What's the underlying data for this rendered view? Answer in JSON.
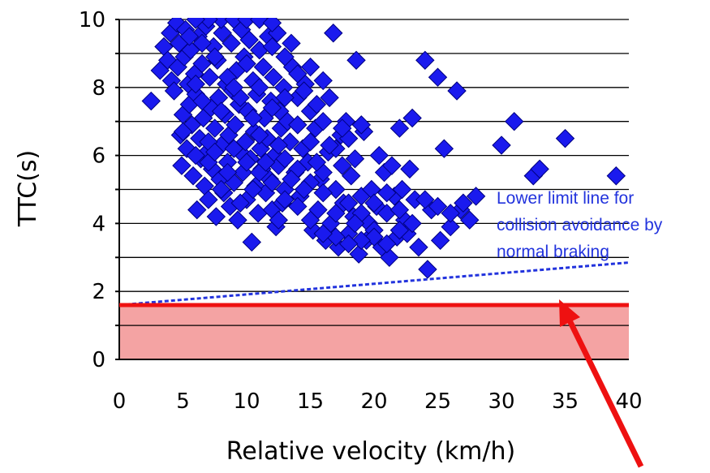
{
  "chart_data": {
    "type": "scatter",
    "title": "",
    "xlabel": "Relative velocity (km/h)",
    "ylabel": "TTC(s)",
    "xlim": [
      0,
      40
    ],
    "ylim": [
      0,
      10
    ],
    "x_ticks": [
      "0",
      "5",
      "10",
      "15",
      "20",
      "25",
      "30",
      "35",
      "40"
    ],
    "y_ticks": [
      "0",
      "2",
      "4",
      "6",
      "8",
      "10"
    ],
    "grid": "horizontal",
    "colors": {
      "points": "#1a1aee",
      "point_edge": "#000080",
      "limit_line": "#ee1111",
      "hazard_fill": "#f4a3a3",
      "dashed_line": "#2233dd",
      "annotation": "#2233dd"
    },
    "points": [
      [
        2.5,
        7.6
      ],
      [
        3.2,
        8.5
      ],
      [
        3.5,
        9.2
      ],
      [
        3.8,
        8.8
      ],
      [
        4,
        9.6
      ],
      [
        4.1,
        8.2
      ],
      [
        4.3,
        7.9
      ],
      [
        4.5,
        9.9
      ],
      [
        4.6,
        8.6
      ],
      [
        4.7,
        9.3
      ],
      [
        4.8,
        6.6
      ],
      [
        4.9,
        5.7
      ],
      [
        5,
        7.2
      ],
      [
        5.1,
        8.9
      ],
      [
        5.2,
        9.7
      ],
      [
        5.3,
        6.2
      ],
      [
        5.4,
        8.1
      ],
      [
        5.5,
        7.5
      ],
      [
        5.6,
        9.1
      ],
      [
        5.7,
        6.9
      ],
      [
        5.8,
        5.4
      ],
      [
        5.9,
        8.4
      ],
      [
        6,
        7.8
      ],
      [
        6.1,
        4.4
      ],
      [
        6.2,
        9.5
      ],
      [
        6.3,
        6.5
      ],
      [
        6.4,
        5.9
      ],
      [
        6.5,
        8.7
      ],
      [
        6.6,
        7.1
      ],
      [
        6.7,
        5.1
      ],
      [
        6.8,
        9.8
      ],
      [
        6.9,
        6.1
      ],
      [
        7,
        4.7
      ],
      [
        7.1,
        8.3
      ],
      [
        7.2,
        7.4
      ],
      [
        7.3,
        5.6
      ],
      [
        7.4,
        9.2
      ],
      [
        7.5,
        6.8
      ],
      [
        7.6,
        4.2
      ],
      [
        7.7,
        8.8
      ],
      [
        7.8,
        7.7
      ],
      [
        7.9,
        5.3
      ],
      [
        8,
        6.3
      ],
      [
        8.1,
        9.6
      ],
      [
        8.2,
        4.9
      ],
      [
        8.3,
        7.2
      ],
      [
        8.4,
        8.1
      ],
      [
        8.5,
        5.8
      ],
      [
        8.6,
        6.6
      ],
      [
        8.7,
        4.5
      ],
      [
        8.8,
        9.3
      ],
      [
        8.9,
        7.9
      ],
      [
        9,
        5.2
      ],
      [
        9.1,
        6.9
      ],
      [
        9.2,
        8.5
      ],
      [
        9.3,
        4.1
      ],
      [
        9.4,
        7.5
      ],
      [
        9.5,
        6.1
      ],
      [
        9.6,
        9.7
      ],
      [
        9.7,
        5.5
      ],
      [
        9.8,
        8.9
      ],
      [
        9.9,
        6.4
      ],
      [
        10,
        4.7
      ],
      [
        10.1,
        7.3
      ],
      [
        10.2,
        9.4
      ],
      [
        10.3,
        5.9
      ],
      [
        10.4,
        3.45
      ],
      [
        10.5,
        8.2
      ],
      [
        10.6,
        6.7
      ],
      [
        10.7,
        5.1
      ],
      [
        10.8,
        7.8
      ],
      [
        10.9,
        4.3
      ],
      [
        11,
        9.1
      ],
      [
        11.1,
        6.2
      ],
      [
        11.2,
        5.6
      ],
      [
        11.3,
        8.6
      ],
      [
        11.4,
        7.1
      ],
      [
        11.5,
        4.9
      ],
      [
        11.6,
        6.5
      ],
      [
        11.7,
        9.5
      ],
      [
        11.8,
        5.3
      ],
      [
        11.9,
        7.6
      ],
      [
        12,
        4.4
      ],
      [
        12.1,
        8.3
      ],
      [
        12.2,
        6.0
      ],
      [
        12.3,
        3.9
      ],
      [
        12.4,
        9.6
      ],
      [
        12.5,
        5.7
      ],
      [
        12.6,
        7.3
      ],
      [
        12.7,
        6.8
      ],
      [
        12.8,
        4.6
      ],
      [
        12.9,
        8.0
      ],
      [
        13,
        5.0
      ],
      [
        13.2,
        7.0
      ],
      [
        13.4,
        6.4
      ],
      [
        13.6,
        8.6
      ],
      [
        13.8,
        5.5
      ],
      [
        14,
        7.7
      ],
      [
        14.2,
        4.8
      ],
      [
        14.4,
        6.2
      ],
      [
        14.6,
        8.1
      ],
      [
        14.8,
        5.8
      ],
      [
        15,
        7.3
      ],
      [
        15.2,
        3.8
      ],
      [
        15.4,
        6.8
      ],
      [
        15.6,
        4.4
      ],
      [
        15.8,
        5.3
      ],
      [
        16,
        7.0
      ],
      [
        16.2,
        3.5
      ],
      [
        16.4,
        6.1
      ],
      [
        16.6,
        4.0
      ],
      [
        16.8,
        9.6
      ],
      [
        17,
        5.0
      ],
      [
        17.2,
        3.3
      ],
      [
        17.4,
        6.6
      ],
      [
        17.6,
        4.6
      ],
      [
        17.8,
        7.0
      ],
      [
        18,
        3.7
      ],
      [
        18.2,
        5.4
      ],
      [
        18.4,
        4.2
      ],
      [
        18.6,
        8.8
      ],
      [
        18.8,
        3.1
      ],
      [
        19,
        4.8
      ],
      [
        19.2,
        6.7
      ],
      [
        19.4,
        3.5
      ],
      [
        19.6,
        4.0
      ],
      [
        19.8,
        5.0
      ],
      [
        20,
        3.8
      ],
      [
        20.2,
        4.5
      ],
      [
        20.4,
        6.0
      ],
      [
        20.6,
        3.3
      ],
      [
        20.8,
        5.5
      ],
      [
        21,
        4.3
      ],
      [
        21.2,
        3.0
      ],
      [
        21.4,
        5.7
      ],
      [
        21.6,
        4.8
      ],
      [
        21.8,
        3.6
      ],
      [
        22,
        6.8
      ],
      [
        22.2,
        5.0
      ],
      [
        22.4,
        4.1
      ],
      [
        22.6,
        3.7
      ],
      [
        22.8,
        5.6
      ],
      [
        23,
        7.1
      ],
      [
        23.2,
        4.7
      ],
      [
        23.5,
        3.3
      ],
      [
        24,
        8.8
      ],
      [
        24.2,
        2.65
      ],
      [
        24.5,
        4.4
      ],
      [
        25,
        8.3
      ],
      [
        25.2,
        3.5
      ],
      [
        25.5,
        6.2
      ],
      [
        26,
        3.9
      ],
      [
        26.5,
        7.9
      ],
      [
        26.8,
        4.4
      ],
      [
        27.5,
        4.1
      ],
      [
        28,
        4.8
      ],
      [
        30,
        6.3
      ],
      [
        31,
        7.0
      ],
      [
        32.5,
        5.4
      ],
      [
        33,
        5.6
      ],
      [
        35,
        6.5
      ],
      [
        39,
        5.4
      ],
      [
        8,
        10.0
      ],
      [
        9,
        10.0
      ],
      [
        10,
        10.0
      ],
      [
        11,
        10.0
      ],
      [
        12,
        9.9
      ],
      [
        7,
        10.0
      ],
      [
        6,
        10.0
      ],
      [
        12,
        9.2
      ],
      [
        13,
        8.9
      ],
      [
        13.5,
        9.3
      ],
      [
        14,
        8.4
      ],
      [
        15,
        8.6
      ],
      [
        16,
        8.2
      ],
      [
        14.5,
        7.9
      ],
      [
        15.5,
        7.5
      ],
      [
        16.5,
        7.7
      ],
      [
        17,
        6.2
      ],
      [
        18,
        6.5
      ],
      [
        18.5,
        5.9
      ],
      [
        19,
        6.9
      ],
      [
        17.5,
        5.7
      ],
      [
        16,
        5.5
      ],
      [
        15,
        5.2
      ],
      [
        14,
        5.6
      ],
      [
        13,
        5.9
      ],
      [
        12.5,
        6.3
      ],
      [
        11,
        6.6
      ],
      [
        10.5,
        7.1
      ],
      [
        9.5,
        7.7
      ],
      [
        8.5,
        8.3
      ],
      [
        7.5,
        8.9
      ],
      [
        6.5,
        9.3
      ],
      [
        5.5,
        9.5
      ],
      [
        6,
        8.1
      ],
      [
        7,
        6.4
      ],
      [
        8,
        7.3
      ],
      [
        9,
        8.0
      ],
      [
        10,
        8.7
      ],
      [
        11,
        8.0
      ],
      [
        12,
        7.4
      ],
      [
        13,
        7.7
      ],
      [
        14,
        6.9
      ],
      [
        15,
        6.4
      ],
      [
        16,
        4.9
      ],
      [
        17,
        4.3
      ],
      [
        18,
        4.6
      ],
      [
        19,
        4.3
      ],
      [
        20,
        4.6
      ],
      [
        21,
        4.9
      ],
      [
        22,
        4.4
      ],
      [
        23,
        4.0
      ],
      [
        24,
        4.7
      ],
      [
        25,
        4.5
      ],
      [
        26,
        4.3
      ],
      [
        27,
        4.6
      ],
      [
        20,
        3.6
      ],
      [
        21,
        3.4
      ],
      [
        22,
        3.8
      ],
      [
        19,
        3.5
      ],
      [
        18,
        3.4
      ],
      [
        17,
        3.6
      ],
      [
        16,
        3.7
      ],
      [
        15,
        4.1
      ],
      [
        14,
        4.5
      ],
      [
        13,
        4.7
      ],
      [
        12,
        5.2
      ],
      [
        11,
        5.5
      ],
      [
        10,
        5.8
      ],
      [
        9,
        6.2
      ],
      [
        8,
        5.0
      ],
      [
        7,
        5.8
      ],
      [
        6,
        6.0
      ],
      [
        5,
        6.7
      ],
      [
        6.5,
        7.6
      ],
      [
        7.5,
        6.1
      ],
      [
        8.5,
        5.5
      ],
      [
        9.5,
        4.6
      ],
      [
        10.5,
        5.0
      ],
      [
        11.5,
        5.8
      ],
      [
        12.5,
        4.1
      ],
      [
        13.5,
        5.3
      ],
      [
        14.5,
        5.0
      ],
      [
        15.5,
        5.8
      ],
      [
        16.5,
        6.3
      ],
      [
        17.5,
        6.8
      ],
      [
        18.5,
        4.0
      ]
    ],
    "dashed_line": {
      "x": [
        0,
        40
      ],
      "y": [
        1.6,
        2.85
      ]
    },
    "limit_line_y": 1.6,
    "hazard_band": [
      0,
      1.6
    ],
    "annotation": {
      "lines": [
        "Lower limit line for",
        "collision avoidance by",
        "normal braking"
      ]
    }
  }
}
